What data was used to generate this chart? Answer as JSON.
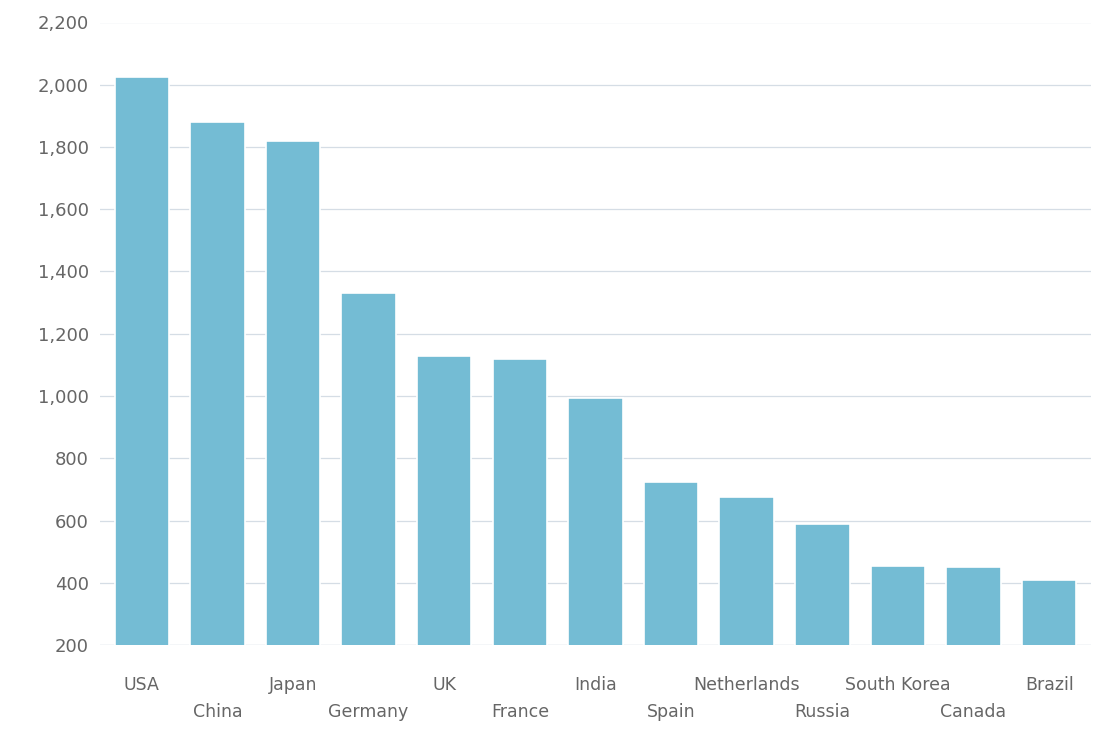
{
  "categories": [
    "USA",
    "China",
    "Japan",
    "Germany",
    "UK",
    "France",
    "India",
    "Spain",
    "Netherlands",
    "Russia",
    "South Korea",
    "Canada",
    "Brazil"
  ],
  "values": [
    2025,
    1880,
    1820,
    1330,
    1130,
    1120,
    995,
    725,
    675,
    590,
    455,
    450,
    410
  ],
  "bar_color": "#74bcd4",
  "background_color": "#ffffff",
  "grid_color": "#d5dde5",
  "tick_label_color": "#666666",
  "ylim_min": 200,
  "ylim_max": 2200,
  "yticks": [
    200,
    400,
    600,
    800,
    1000,
    1200,
    1400,
    1600,
    1800,
    2000,
    2200
  ],
  "bar_width": 0.72,
  "label_fontsize": 12.5,
  "tick_fontsize": 13,
  "label_font_family": "sans-serif"
}
